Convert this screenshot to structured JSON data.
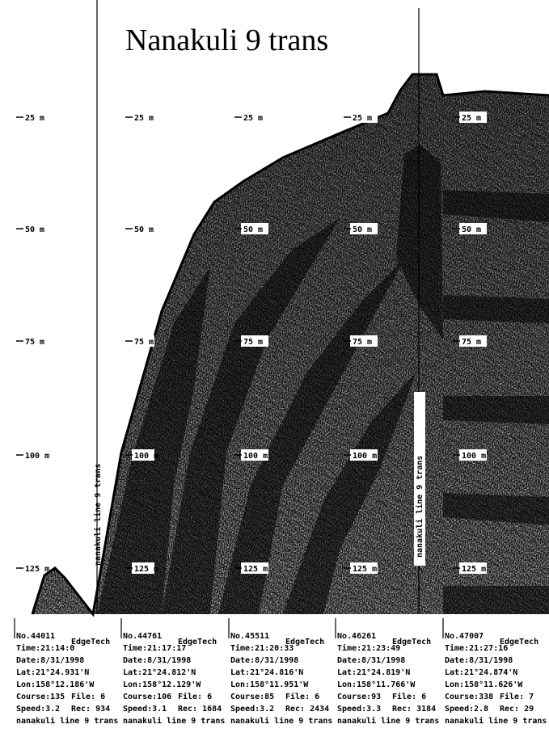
{
  "title": "Nanakuli 9 trans",
  "track_label": "nanakuli line 9 trans",
  "depth_labels": [
    "25 m",
    "50 m",
    "75 m",
    "100 m",
    "125 m"
  ],
  "records": [
    {
      "no": "No.44011",
      "system": "EdgeTech",
      "time": "Time:21:14:0",
      "date": "Date:8/31/1998",
      "lat": "Lat:21°24.931'N",
      "lon": "Lon:158°12.186'W",
      "course": "Course:135",
      "file": "File: 6",
      "speed": "Speed:3.2",
      "rec": "Rec: 934",
      "line": "nanakuli line 9 trans"
    },
    {
      "no": "No.44761",
      "system": "EdgeTech",
      "time": "Time:21:17:17",
      "date": "Date:8/31/1998",
      "lat": "Lat:21°24.812'N",
      "lon": "Lon:158°12.129'W",
      "course": "Course:106",
      "file": "File: 6",
      "speed": "Speed:3.1",
      "rec": "Rec: 1684",
      "line": "nanakuli line 9 trans"
    },
    {
      "no": "No.45511",
      "system": "EdgeTech",
      "time": "Time:21:20:33",
      "date": "Date:8/31/1998",
      "lat": "Lat:21°24.816'N",
      "lon": "Lon:158°11.951'W",
      "course": "Course:85",
      "file": "File: 6",
      "speed": "Speed:3.2",
      "rec": "Rec: 2434",
      "line": "nanakuli line 9 trans"
    },
    {
      "no": "No.46261",
      "system": "EdgeTech",
      "time": "Time:21:23:49",
      "date": "Date:8/31/1998",
      "lat": "Lat:21°24.819'N",
      "lon": "Lon:158°11.766'W",
      "course": "Course:93",
      "file": "File: 6",
      "speed": "Speed:3.3",
      "rec": "Rec: 3184",
      "line": "nanakuli line 9 trans"
    },
    {
      "no": "No.47007",
      "system": "EdgeTech",
      "time": "Time:21:27:16",
      "date": "Date:8/31/1998",
      "lat": "Lat:21°24.874'N",
      "lon": "Lon:158°11.626'W",
      "course": "Course:338",
      "file": "File: 7",
      "speed": "Speed:2.8",
      "rec": "Rec: 29",
      "line": "nanakuli line 9 trans"
    }
  ]
}
